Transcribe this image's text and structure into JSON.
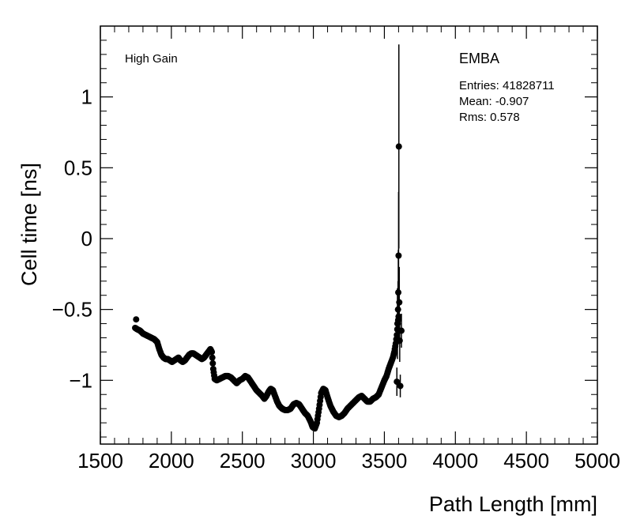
{
  "chart_data": {
    "type": "scatter",
    "xlabel": "Path Length [mm]",
    "ylabel": "Cell time [ns]",
    "xlim": [
      1500,
      5000
    ],
    "ylim": [
      -1.45,
      1.5
    ],
    "x_ticks": [
      1500,
      2000,
      2500,
      3000,
      3500,
      4000,
      4500,
      5000
    ],
    "x_tick_labels": [
      "1500",
      "2000",
      "2500",
      "3000",
      "3500",
      "4000",
      "4500",
      "5000"
    ],
    "y_ticks": [
      -1,
      -0.5,
      0,
      0.5,
      1
    ],
    "y_tick_labels": [
      "−1",
      "−0.5",
      "0",
      "0.5",
      "1"
    ],
    "grid": false,
    "legend": "none",
    "marker_color": "#000000",
    "annotations": {
      "gain": "High Gain",
      "partition": "EMBA",
      "entries": "Entries: 41828711",
      "mean": "Mean: -0.907",
      "rms": "Rms: 0.578"
    },
    "profile": [
      [
        1745,
        -0.63
      ],
      [
        1760,
        -0.64
      ],
      [
        1780,
        -0.65
      ],
      [
        1800,
        -0.67
      ],
      [
        1820,
        -0.68
      ],
      [
        1840,
        -0.69
      ],
      [
        1860,
        -0.7
      ],
      [
        1880,
        -0.71
      ],
      [
        1900,
        -0.73
      ],
      [
        1915,
        -0.78
      ],
      [
        1930,
        -0.82
      ],
      [
        1945,
        -0.84
      ],
      [
        1960,
        -0.85
      ],
      [
        1975,
        -0.85
      ],
      [
        1990,
        -0.86
      ],
      [
        2005,
        -0.87
      ],
      [
        2020,
        -0.86
      ],
      [
        2035,
        -0.85
      ],
      [
        2050,
        -0.84
      ],
      [
        2065,
        -0.86
      ],
      [
        2080,
        -0.87
      ],
      [
        2095,
        -0.86
      ],
      [
        2110,
        -0.84
      ],
      [
        2125,
        -0.82
      ],
      [
        2140,
        -0.81
      ],
      [
        2155,
        -0.81
      ],
      [
        2170,
        -0.82
      ],
      [
        2185,
        -0.83
      ],
      [
        2200,
        -0.84
      ],
      [
        2215,
        -0.85
      ],
      [
        2230,
        -0.84
      ],
      [
        2245,
        -0.82
      ],
      [
        2260,
        -0.8
      ],
      [
        2275,
        -0.78
      ],
      [
        2285,
        -0.8
      ],
      [
        2295,
        -0.92
      ],
      [
        2305,
        -0.99
      ],
      [
        2320,
        -1.0
      ],
      [
        2340,
        -0.99
      ],
      [
        2360,
        -0.98
      ],
      [
        2380,
        -0.97
      ],
      [
        2400,
        -0.97
      ],
      [
        2420,
        -0.98
      ],
      [
        2440,
        -1.0
      ],
      [
        2460,
        -1.02
      ],
      [
        2480,
        -1.0
      ],
      [
        2500,
        -0.99
      ],
      [
        2520,
        -0.97
      ],
      [
        2540,
        -0.98
      ],
      [
        2560,
        -1.01
      ],
      [
        2580,
        -1.04
      ],
      [
        2600,
        -1.07
      ],
      [
        2620,
        -1.09
      ],
      [
        2640,
        -1.11
      ],
      [
        2655,
        -1.13
      ],
      [
        2670,
        -1.11
      ],
      [
        2685,
        -1.08
      ],
      [
        2700,
        -1.06
      ],
      [
        2715,
        -1.07
      ],
      [
        2730,
        -1.11
      ],
      [
        2745,
        -1.15
      ],
      [
        2760,
        -1.18
      ],
      [
        2780,
        -1.2
      ],
      [
        2800,
        -1.21
      ],
      [
        2820,
        -1.21
      ],
      [
        2840,
        -1.2
      ],
      [
        2860,
        -1.17
      ],
      [
        2880,
        -1.16
      ],
      [
        2900,
        -1.17
      ],
      [
        2920,
        -1.2
      ],
      [
        2940,
        -1.23
      ],
      [
        2960,
        -1.25
      ],
      [
        2980,
        -1.29
      ],
      [
        2995,
        -1.33
      ],
      [
        3010,
        -1.34
      ],
      [
        3025,
        -1.3
      ],
      [
        3040,
        -1.2
      ],
      [
        3055,
        -1.09
      ],
      [
        3070,
        -1.06
      ],
      [
        3085,
        -1.07
      ],
      [
        3100,
        -1.12
      ],
      [
        3120,
        -1.18
      ],
      [
        3140,
        -1.22
      ],
      [
        3160,
        -1.25
      ],
      [
        3180,
        -1.26
      ],
      [
        3200,
        -1.25
      ],
      [
        3220,
        -1.23
      ],
      [
        3240,
        -1.2
      ],
      [
        3260,
        -1.18
      ],
      [
        3280,
        -1.16
      ],
      [
        3300,
        -1.14
      ],
      [
        3320,
        -1.12
      ],
      [
        3340,
        -1.11
      ],
      [
        3360,
        -1.13
      ],
      [
        3380,
        -1.15
      ],
      [
        3400,
        -1.15
      ],
      [
        3420,
        -1.13
      ],
      [
        3440,
        -1.12
      ],
      [
        3460,
        -1.1
      ],
      [
        3480,
        -1.05
      ],
      [
        3500,
        -1.0
      ],
      [
        3515,
        -0.97
      ],
      [
        3530,
        -0.92
      ],
      [
        3545,
        -0.88
      ],
      [
        3560,
        -0.84
      ],
      [
        3570,
        -0.8
      ],
      [
        3580,
        -0.74
      ],
      [
        3588,
        -0.68
      ],
      [
        3594,
        -0.6
      ],
      [
        3600,
        -0.55
      ]
    ],
    "tail_points": [
      {
        "x": 3588,
        "y": -1.01,
        "err": 0.1
      },
      {
        "x": 3592,
        "y": -0.6,
        "err": 0.25
      },
      {
        "x": 3596,
        "y": -0.5,
        "err": 0.2
      },
      {
        "x": 3598,
        "y": -0.38,
        "err": 0.3
      },
      {
        "x": 3600,
        "y": -0.12,
        "err": 0.45
      },
      {
        "x": 3602,
        "y": 0.65,
        "err": 0.72
      },
      {
        "x": 3605,
        "y": -0.45,
        "err": 0.25
      },
      {
        "x": 3608,
        "y": -0.72,
        "err": 0.15
      },
      {
        "x": 3612,
        "y": -1.04,
        "err": 0.08
      },
      {
        "x": 3620,
        "y": -0.65,
        "err": 0.12
      },
      {
        "x": 1752,
        "y": -0.57,
        "err": 0.01
      }
    ]
  }
}
